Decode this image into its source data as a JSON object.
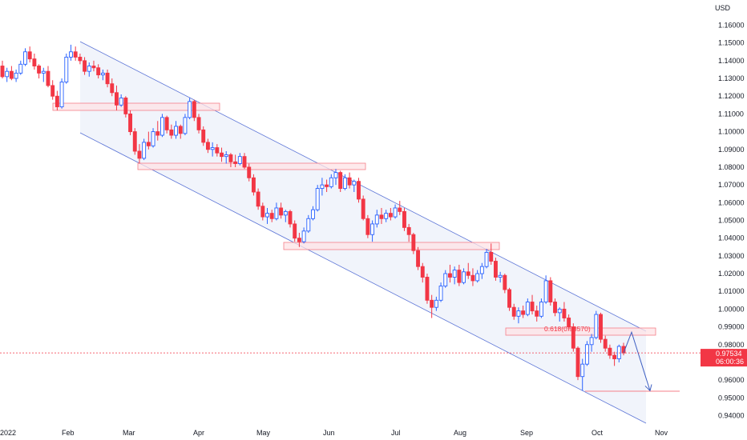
{
  "chart_data": {
    "type": "candlestick",
    "currency_label": "USD",
    "y_ticks": [
      "1.16000",
      "1.15000",
      "1.14000",
      "1.13000",
      "1.12000",
      "1.11000",
      "1.10000",
      "1.09000",
      "1.08000",
      "1.07000",
      "1.06000",
      "1.05000",
      "1.04000",
      "1.03000",
      "1.02000",
      "1.01000",
      "1.00000",
      "0.99000",
      "0.98000",
      "0.97000",
      "0.96000",
      "0.95000",
      "0.94000"
    ],
    "ylim": [
      0.933,
      1.168
    ],
    "x_ticks": [
      "2022",
      "Feb",
      "Mar",
      "Apr",
      "May",
      "Jun",
      "Jul",
      "Aug",
      "Sep",
      "Oct",
      "Nov"
    ],
    "current_price": "0.97534",
    "countdown": "06:00:36",
    "fib_label": "0.618(0.98570)",
    "colors": {
      "up": "#2962ff",
      "down": "#f23645",
      "channel": "#5b74d6",
      "zone_fill": "#fde3e5",
      "zone_border": "#f57f89",
      "price_line": "#f23645",
      "channel_fill": "#eef1fa"
    },
    "candles": [
      [
        1.137,
        1.14,
        1.13,
        1.131
      ],
      [
        1.131,
        1.136,
        1.128,
        1.134
      ],
      [
        1.134,
        1.137,
        1.129,
        1.13
      ],
      [
        1.13,
        1.135,
        1.128,
        1.133
      ],
      [
        1.133,
        1.14,
        1.132,
        1.138
      ],
      [
        1.138,
        1.147,
        1.137,
        1.145
      ],
      [
        1.145,
        1.148,
        1.139,
        1.141
      ],
      [
        1.141,
        1.144,
        1.135,
        1.137
      ],
      [
        1.137,
        1.138,
        1.13,
        1.133
      ],
      [
        1.133,
        1.136,
        1.128,
        1.134
      ],
      [
        1.134,
        1.137,
        1.125,
        1.126
      ],
      [
        1.126,
        1.129,
        1.118,
        1.12
      ],
      [
        1.12,
        1.123,
        1.112,
        1.114
      ],
      [
        1.114,
        1.13,
        1.113,
        1.128
      ],
      [
        1.128,
        1.144,
        1.127,
        1.142
      ],
      [
        1.142,
        1.149,
        1.14,
        1.145
      ],
      [
        1.145,
        1.148,
        1.14,
        1.142
      ],
      [
        1.142,
        1.144,
        1.138,
        1.14
      ],
      [
        1.14,
        1.142,
        1.132,
        1.134
      ],
      [
        1.134,
        1.139,
        1.131,
        1.137
      ],
      [
        1.137,
        1.14,
        1.134,
        1.136
      ],
      [
        1.136,
        1.138,
        1.13,
        1.132
      ],
      [
        1.132,
        1.135,
        1.129,
        1.133
      ],
      [
        1.133,
        1.135,
        1.125,
        1.127
      ],
      [
        1.127,
        1.13,
        1.12,
        1.122
      ],
      [
        1.122,
        1.126,
        1.112,
        1.115
      ],
      [
        1.115,
        1.121,
        1.114,
        1.119
      ],
      [
        1.119,
        1.12,
        1.108,
        1.11
      ],
      [
        1.11,
        1.112,
        1.098,
        1.1
      ],
      [
        1.1,
        1.102,
        1.087,
        1.089
      ],
      [
        1.089,
        1.093,
        1.082,
        1.085
      ],
      [
        1.085,
        1.096,
        1.084,
        1.094
      ],
      [
        1.094,
        1.1,
        1.09,
        1.092
      ],
      [
        1.092,
        1.102,
        1.091,
        1.1
      ],
      [
        1.1,
        1.106,
        1.095,
        1.098
      ],
      [
        1.098,
        1.11,
        1.097,
        1.108
      ],
      [
        1.108,
        1.109,
        1.099,
        1.101
      ],
      [
        1.101,
        1.104,
        1.096,
        1.098
      ],
      [
        1.098,
        1.106,
        1.096,
        1.103
      ],
      [
        1.103,
        1.104,
        1.096,
        1.099
      ],
      [
        1.099,
        1.11,
        1.098,
        1.108
      ],
      [
        1.108,
        1.119,
        1.107,
        1.117
      ],
      [
        1.117,
        1.118,
        1.106,
        1.108
      ],
      [
        1.108,
        1.11,
        1.099,
        1.101
      ],
      [
        1.101,
        1.103,
        1.092,
        1.094
      ],
      [
        1.094,
        1.096,
        1.088,
        1.09
      ],
      [
        1.09,
        1.094,
        1.086,
        1.091
      ],
      [
        1.091,
        1.093,
        1.086,
        1.088
      ],
      [
        1.088,
        1.091,
        1.083,
        1.086
      ],
      [
        1.086,
        1.089,
        1.082,
        1.087
      ],
      [
        1.087,
        1.088,
        1.08,
        1.083
      ],
      [
        1.083,
        1.087,
        1.08,
        1.082
      ],
      [
        1.082,
        1.088,
        1.081,
        1.086
      ],
      [
        1.086,
        1.088,
        1.079,
        1.08
      ],
      [
        1.08,
        1.082,
        1.072,
        1.074
      ],
      [
        1.074,
        1.076,
        1.064,
        1.066
      ],
      [
        1.066,
        1.068,
        1.056,
        1.058
      ],
      [
        1.058,
        1.06,
        1.05,
        1.052
      ],
      [
        1.052,
        1.057,
        1.048,
        1.054
      ],
      [
        1.054,
        1.056,
        1.049,
        1.051
      ],
      [
        1.051,
        1.06,
        1.05,
        1.057
      ],
      [
        1.057,
        1.06,
        1.051,
        1.053
      ],
      [
        1.053,
        1.056,
        1.049,
        1.055
      ],
      [
        1.055,
        1.056,
        1.046,
        1.048
      ],
      [
        1.048,
        1.05,
        1.038,
        1.04
      ],
      [
        1.04,
        1.043,
        1.035,
        1.038
      ],
      [
        1.038,
        1.046,
        1.037,
        1.044
      ],
      [
        1.044,
        1.053,
        1.043,
        1.051
      ],
      [
        1.051,
        1.058,
        1.05,
        1.056
      ],
      [
        1.056,
        1.07,
        1.055,
        1.068
      ],
      [
        1.068,
        1.074,
        1.064,
        1.07
      ],
      [
        1.07,
        1.073,
        1.066,
        1.069
      ],
      [
        1.069,
        1.076,
        1.068,
        1.074
      ],
      [
        1.074,
        1.079,
        1.07,
        1.077
      ],
      [
        1.077,
        1.078,
        1.066,
        1.068
      ],
      [
        1.068,
        1.076,
        1.067,
        1.074
      ],
      [
        1.074,
        1.077,
        1.068,
        1.07
      ],
      [
        1.07,
        1.073,
        1.066,
        1.072
      ],
      [
        1.072,
        1.074,
        1.06,
        1.062
      ],
      [
        1.062,
        1.064,
        1.05,
        1.051
      ],
      [
        1.051,
        1.053,
        1.04,
        1.042
      ],
      [
        1.042,
        1.05,
        1.038,
        1.048
      ],
      [
        1.048,
        1.056,
        1.046,
        1.053
      ],
      [
        1.053,
        1.057,
        1.048,
        1.051
      ],
      [
        1.051,
        1.056,
        1.049,
        1.054
      ],
      [
        1.054,
        1.057,
        1.05,
        1.052
      ],
      [
        1.052,
        1.059,
        1.051,
        1.057
      ],
      [
        1.057,
        1.061,
        1.053,
        1.055
      ],
      [
        1.055,
        1.057,
        1.044,
        1.046
      ],
      [
        1.046,
        1.048,
        1.038,
        1.042
      ],
      [
        1.042,
        1.043,
        1.031,
        1.033
      ],
      [
        1.033,
        1.035,
        1.022,
        1.024
      ],
      [
        1.024,
        1.026,
        1.015,
        1.018
      ],
      [
        1.018,
        1.02,
        1.003,
        1.005
      ],
      [
        1.005,
        1.008,
        0.995,
        1.001
      ],
      [
        1.001,
        1.007,
        0.999,
        1.005
      ],
      [
        1.005,
        1.015,
        1.004,
        1.013
      ],
      [
        1.013,
        1.022,
        1.012,
        1.02
      ],
      [
        1.02,
        1.025,
        1.015,
        1.018
      ],
      [
        1.018,
        1.024,
        1.014,
        1.022
      ],
      [
        1.022,
        1.025,
        1.013,
        1.015
      ],
      [
        1.015,
        1.023,
        1.014,
        1.021
      ],
      [
        1.021,
        1.026,
        1.017,
        1.019
      ],
      [
        1.019,
        1.023,
        1.013,
        1.016
      ],
      [
        1.016,
        1.022,
        1.015,
        1.02
      ],
      [
        1.02,
        1.026,
        1.017,
        1.024
      ],
      [
        1.024,
        1.034,
        1.023,
        1.032
      ],
      [
        1.032,
        1.037,
        1.025,
        1.027
      ],
      [
        1.027,
        1.029,
        1.016,
        1.018
      ],
      [
        1.018,
        1.021,
        1.015,
        1.019
      ],
      [
        1.019,
        1.02,
        1.009,
        1.011
      ],
      [
        1.011,
        1.012,
        0.999,
        1.001
      ],
      [
        1.001,
        1.003,
        0.994,
        0.996
      ],
      [
        0.996,
        1.001,
        0.992,
        0.999
      ],
      [
        0.999,
        1.002,
        0.995,
        0.997
      ],
      [
        0.997,
        1.006,
        0.996,
        1.004
      ],
      [
        1.004,
        1.008,
        0.997,
        0.999
      ],
      [
        0.999,
        1.002,
        0.993,
        0.996
      ],
      [
        0.996,
        1.006,
        0.995,
        1.004
      ],
      [
        1.004,
        1.019,
        1.003,
        1.016
      ],
      [
        1.016,
        1.018,
        1.002,
        1.004
      ],
      [
        1.004,
        1.006,
        0.996,
        0.998
      ],
      [
        0.998,
        1.001,
        0.993,
        1.0
      ],
      [
        1.0,
        1.004,
        0.993,
        0.995
      ],
      [
        0.995,
        0.997,
        0.988,
        0.99
      ],
      [
        0.99,
        0.992,
        0.976,
        0.978
      ],
      [
        0.978,
        0.979,
        0.96,
        0.962
      ],
      [
        0.962,
        0.972,
        0.954,
        0.969
      ],
      [
        0.969,
        0.982,
        0.968,
        0.98
      ],
      [
        0.98,
        0.986,
        0.976,
        0.984
      ],
      [
        0.984,
        0.999,
        0.983,
        0.997
      ],
      [
        0.997,
        0.998,
        0.981,
        0.983
      ],
      [
        0.983,
        0.985,
        0.976,
        0.978
      ],
      [
        0.978,
        0.98,
        0.972,
        0.974
      ],
      [
        0.974,
        0.976,
        0.968,
        0.972
      ],
      [
        0.972,
        0.98,
        0.97,
        0.979
      ],
      [
        0.979,
        0.981,
        0.974,
        0.9753
      ]
    ],
    "projection": [
      [
        0.9753
      ],
      [
        0.987
      ],
      [
        0.954
      ]
    ]
  }
}
